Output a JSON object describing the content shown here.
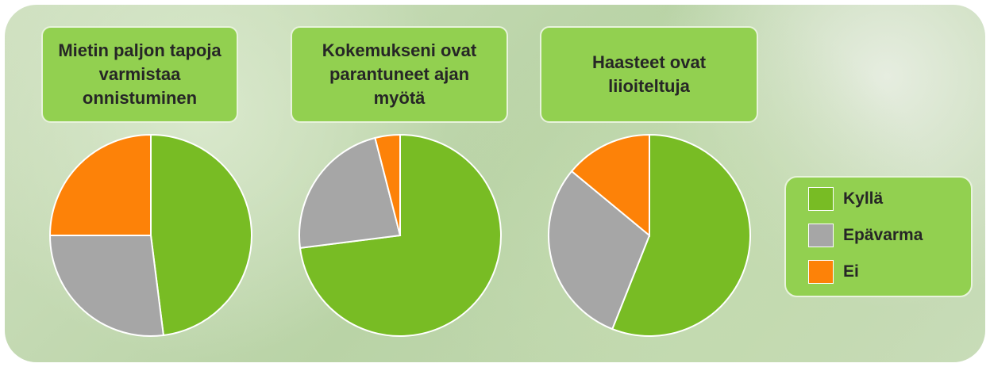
{
  "chart_data": [
    {
      "type": "pie",
      "title": "Mietin paljon tapoja varmistaa onnistuminen",
      "categories": [
        "Kyllä",
        "Epävarma",
        "Ei"
      ],
      "values": [
        48,
        27,
        25
      ],
      "colors": [
        "#78bc24",
        "#a6a6a6",
        "#fd8208"
      ]
    },
    {
      "type": "pie",
      "title": "Kokemukseni ovat parantuneet ajan myötä",
      "categories": [
        "Kyllä",
        "Epävarma",
        "Ei"
      ],
      "values": [
        73,
        23,
        4
      ],
      "colors": [
        "#78bc24",
        "#a6a6a6",
        "#fd8208"
      ]
    },
    {
      "type": "pie",
      "title": "Haasteet ovat liioiteltuja",
      "categories": [
        "Kyllä",
        "Epävarma",
        "Ei"
      ],
      "values": [
        56,
        30,
        14
      ],
      "colors": [
        "#78bc24",
        "#a6a6a6",
        "#fd8208"
      ]
    }
  ]
}
